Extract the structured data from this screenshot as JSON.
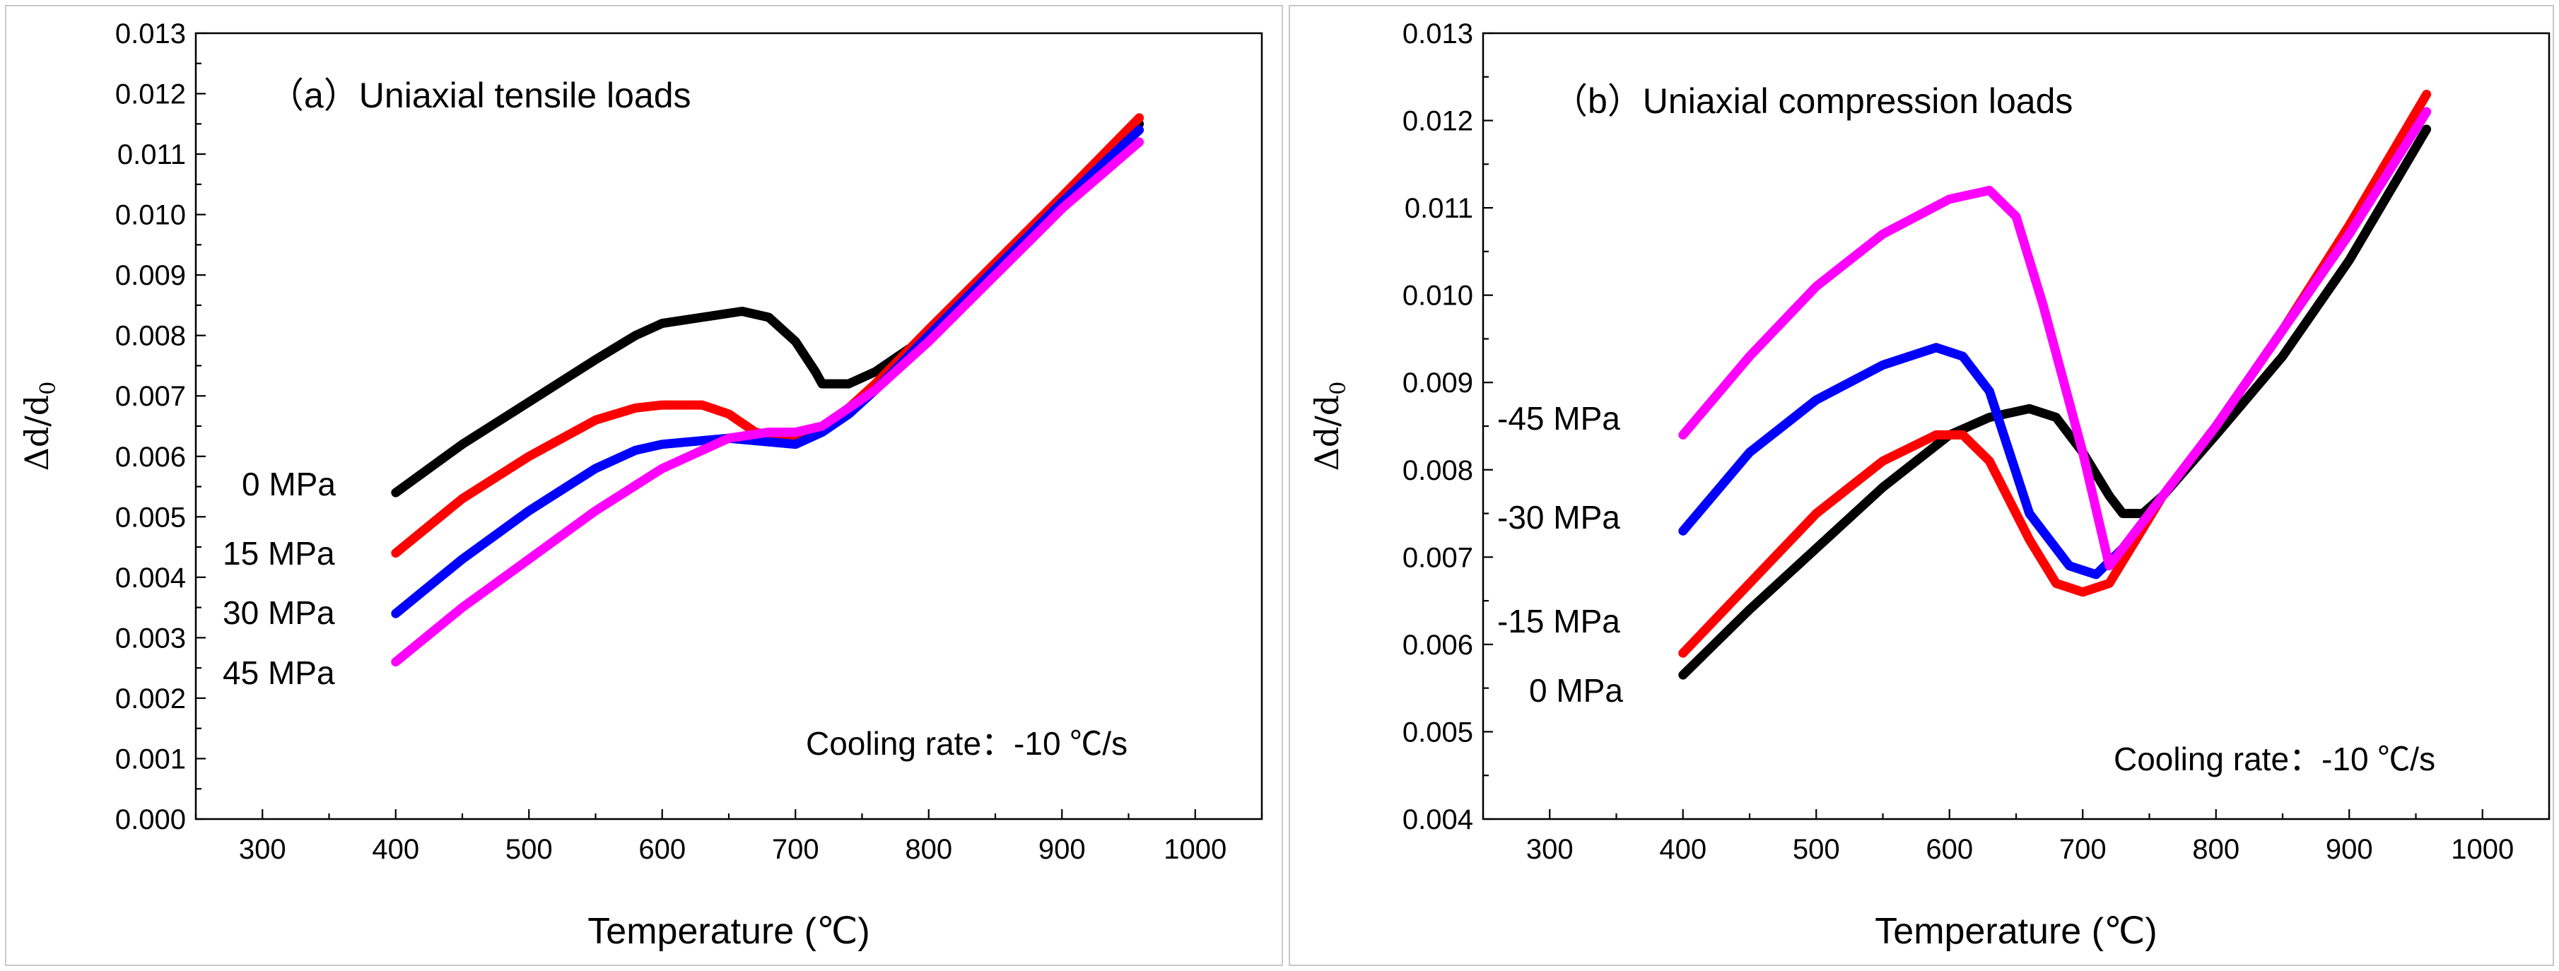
{
  "chart_data": [
    {
      "type": "line",
      "title": "（a）Uniaxial tensile loads",
      "xlabel": "Temperature (℃)",
      "ylabel": "Δd/d",
      "ylabel_sub": "0",
      "xlim": [
        250,
        1050
      ],
      "ylim": [
        0,
        0.013
      ],
      "xticks": [
        300,
        400,
        500,
        600,
        700,
        800,
        900,
        1000
      ],
      "xtick_labels": [
        "300",
        "400",
        "500",
        "600",
        "700",
        "800",
        "900",
        "1000"
      ],
      "yticks": [
        0,
        0.001,
        0.002,
        0.003,
        0.004,
        0.005,
        0.006,
        0.007,
        0.008,
        0.009,
        0.01,
        0.011,
        0.012,
        0.013
      ],
      "ytick_labels": [
        "0.000",
        "0.001",
        "0.002",
        "0.003",
        "0.004",
        "0.005",
        "0.006",
        "0.007",
        "0.008",
        "0.009",
        "0.010",
        "0.011",
        "0.012",
        "0.013"
      ],
      "annotation": "Cooling rate：-10 ℃/s",
      "series": [
        {
          "name": "0 MPa",
          "color": "#000000",
          "x": [
            400,
            450,
            500,
            550,
            580,
            600,
            630,
            660,
            680,
            700,
            715,
            720,
            740,
            760,
            800,
            850,
            900,
            958
          ],
          "y": [
            0.0054,
            0.0062,
            0.0069,
            0.0076,
            0.008,
            0.0082,
            0.0083,
            0.0084,
            0.0083,
            0.0079,
            0.0074,
            0.0072,
            0.0072,
            0.0074,
            0.008,
            0.009,
            0.0101,
            0.0115
          ]
        },
        {
          "name": "15 MPa",
          "color": "#ff0000",
          "x": [
            400,
            450,
            500,
            550,
            580,
            600,
            630,
            650,
            670,
            690,
            710,
            730,
            760,
            800,
            850,
            900,
            958
          ],
          "y": [
            0.0044,
            0.0053,
            0.006,
            0.0066,
            0.0068,
            0.00685,
            0.00685,
            0.0067,
            0.0064,
            0.0063,
            0.0063,
            0.0066,
            0.0072,
            0.0081,
            0.0092,
            0.0103,
            0.0116
          ]
        },
        {
          "name": "30 MPa",
          "color": "#0000ff",
          "x": [
            400,
            450,
            500,
            550,
            580,
            600,
            650,
            700,
            720,
            740,
            760,
            800,
            850,
            900,
            958
          ],
          "y": [
            0.0034,
            0.0043,
            0.0051,
            0.0058,
            0.0061,
            0.0062,
            0.0063,
            0.0062,
            0.0064,
            0.0067,
            0.0071,
            0.008,
            0.0091,
            0.0102,
            0.0114
          ]
        },
        {
          "name": "45 MPa",
          "color": "#ff00ff",
          "x": [
            400,
            450,
            500,
            550,
            600,
            650,
            680,
            700,
            720,
            740,
            760,
            800,
            850,
            900,
            958
          ],
          "y": [
            0.0026,
            0.0035,
            0.0043,
            0.0051,
            0.0058,
            0.0063,
            0.0064,
            0.0064,
            0.0065,
            0.0068,
            0.0071,
            0.0079,
            0.009,
            0.0101,
            0.0112
          ]
        }
      ]
    },
    {
      "type": "line",
      "title": "（b）Uniaxial compression loads",
      "xlabel": "Temperature (℃)",
      "ylabel": "Δd/d",
      "ylabel_sub": "0",
      "xlim": [
        250,
        1050
      ],
      "ylim": [
        0.004,
        0.013
      ],
      "xticks": [
        300,
        400,
        500,
        600,
        700,
        800,
        900,
        1000
      ],
      "xtick_labels": [
        "300",
        "400",
        "500",
        "600",
        "700",
        "800",
        "900",
        "1000"
      ],
      "yticks": [
        0.004,
        0.005,
        0.006,
        0.007,
        0.008,
        0.009,
        0.01,
        0.011,
        0.012,
        0.013
      ],
      "ytick_labels": [
        "0.004",
        "0.005",
        "0.006",
        "0.007",
        "0.008",
        "0.009",
        "0.010",
        "0.011",
        "0.012",
        "0.013"
      ],
      "annotation": "Cooling rate：-10 ℃/s",
      "series": [
        {
          "name": "0 MPa",
          "color": "#000000",
          "x": [
            400,
            450,
            500,
            550,
            600,
            630,
            660,
            680,
            700,
            720,
            730,
            745,
            760,
            800,
            850,
            900,
            958
          ],
          "y": [
            0.00565,
            0.0064,
            0.0071,
            0.0078,
            0.0084,
            0.0086,
            0.0087,
            0.0086,
            0.0082,
            0.0077,
            0.0075,
            0.0075,
            0.0077,
            0.0084,
            0.0093,
            0.0104,
            0.0119
          ]
        },
        {
          "name": "-15 MPa",
          "color": "#ff0000",
          "x": [
            400,
            450,
            500,
            550,
            590,
            610,
            630,
            660,
            680,
            700,
            720,
            740,
            760,
            800,
            850,
            900,
            958
          ],
          "y": [
            0.0059,
            0.0067,
            0.0075,
            0.0081,
            0.0084,
            0.0084,
            0.0081,
            0.0072,
            0.0067,
            0.0066,
            0.0067,
            0.0072,
            0.0077,
            0.0085,
            0.0096,
            0.0108,
            0.0123
          ]
        },
        {
          "name": "-30 MPa",
          "color": "#0000ff",
          "x": [
            400,
            450,
            500,
            550,
            590,
            610,
            630,
            660,
            690,
            710,
            730,
            760,
            800,
            850,
            900,
            958
          ],
          "y": [
            0.0073,
            0.0082,
            0.0088,
            0.0092,
            0.0094,
            0.0093,
            0.0089,
            0.0075,
            0.0069,
            0.0068,
            0.0071,
            0.0077,
            0.0085,
            0.0096,
            0.0107,
            0.0121
          ]
        },
        {
          "name": "-45 MPa",
          "color": "#ff00ff",
          "x": [
            400,
            450,
            500,
            550,
            600,
            630,
            650,
            670,
            700,
            720,
            740,
            760,
            800,
            850,
            900,
            958
          ],
          "y": [
            0.0084,
            0.0093,
            0.0101,
            0.0107,
            0.0111,
            0.0112,
            0.0109,
            0.0099,
            0.0082,
            0.0069,
            0.0073,
            0.0077,
            0.0085,
            0.0096,
            0.0107,
            0.0121
          ]
        }
      ]
    }
  ]
}
